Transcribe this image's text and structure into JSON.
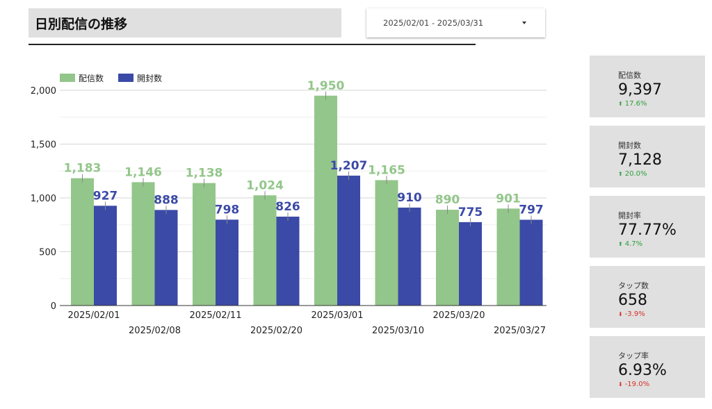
{
  "header": {
    "title": "日別配信の推移",
    "date_range": "2025/02/01 - 2025/03/31"
  },
  "colors": {
    "series_sent": "#93c68a",
    "series_opened": "#3b4aa7",
    "positive": "#2e9e3c",
    "negative": "#d93025",
    "kpi_bg": "#e0e0e0"
  },
  "chart_data": {
    "type": "bar",
    "categories": [
      "2025/02/01",
      "2025/02/08",
      "2025/02/11",
      "2025/02/20",
      "2025/03/01",
      "2025/03/10",
      "2025/03/20",
      "2025/03/27"
    ],
    "series": [
      {
        "name": "配信数",
        "values": [
          1183,
          1146,
          1138,
          1024,
          1950,
          1165,
          890,
          901
        ],
        "labels": [
          "1,183",
          "1,146",
          "1,138",
          "1,024",
          "1,950",
          "1,165",
          "890",
          "901"
        ]
      },
      {
        "name": "開封数",
        "values": [
          927,
          888,
          798,
          826,
          1207,
          910,
          775,
          797
        ],
        "labels": [
          "927",
          "888",
          "798",
          "826",
          "1,207",
          "910",
          "775",
          "797"
        ]
      }
    ],
    "y_ticks": [
      "0",
      "500",
      "1,000",
      "1,500",
      "2,000"
    ],
    "y_tick_values": [
      0,
      500,
      1000,
      1500,
      2000
    ],
    "ylim": [
      0,
      2000
    ],
    "grid": true,
    "legend": "top-left"
  },
  "kpis": [
    {
      "label": "配信数",
      "value": "9,397",
      "delta": "17.6%",
      "direction": "up",
      "icon": "arrow-up-icon"
    },
    {
      "label": "開封数",
      "value": "7,128",
      "delta": "20.0%",
      "direction": "up",
      "icon": "arrow-up-icon"
    },
    {
      "label": "開封率",
      "value": "77.77%",
      "delta": "4.7%",
      "direction": "up",
      "icon": "arrow-up-icon"
    },
    {
      "label": "タップ数",
      "value": "658",
      "delta": "-3.9%",
      "direction": "down",
      "icon": "arrow-down-icon"
    },
    {
      "label": "タップ率",
      "value": "6.93%",
      "delta": "-19.0%",
      "direction": "down",
      "icon": "arrow-down-icon"
    }
  ]
}
